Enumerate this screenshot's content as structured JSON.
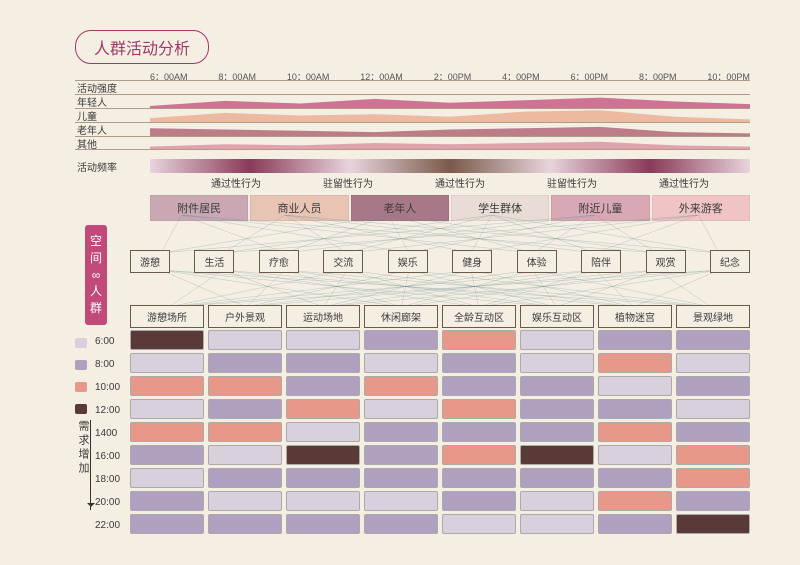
{
  "title": "人群活动分析",
  "time_ticks": [
    "6：00AM",
    "8：00AM",
    "10：00AM",
    "12：00AM",
    "2：00PM",
    "4：00PM",
    "6：00PM",
    "8：00PM",
    "10：00PM"
  ],
  "intensity": {
    "header": "活动强度",
    "rows": [
      {
        "label": "年轻人",
        "color": "#c24a7a",
        "peaks": [
          0.15,
          0.55,
          0.35,
          0.7,
          0.4,
          0.6,
          0.8,
          0.5,
          0.3
        ]
      },
      {
        "label": "儿童",
        "color": "#e8a88a",
        "peaks": [
          0.3,
          0.7,
          0.5,
          0.6,
          0.4,
          0.8,
          0.9,
          0.4,
          0.2
        ]
      },
      {
        "label": "老年人",
        "color": "#a8566a",
        "peaks": [
          0.6,
          0.5,
          0.4,
          0.3,
          0.5,
          0.6,
          0.7,
          0.3,
          0.2
        ]
      },
      {
        "label": "其他",
        "color": "#d88a9a",
        "peaks": [
          0.2,
          0.4,
          0.3,
          0.5,
          0.4,
          0.5,
          0.6,
          0.3,
          0.2
        ]
      }
    ],
    "freq_label": "活动频率"
  },
  "behaviors": [
    "通过性行为",
    "驻留性行为",
    "通过性行为",
    "驻留性行为",
    "通过性行为"
  ],
  "groups": [
    {
      "label": "附件居民",
      "color": "#c9a8b4"
    },
    {
      "label": "商业人员",
      "color": "#e8c4b4"
    },
    {
      "label": "老年人",
      "color": "#a87888"
    },
    {
      "label": "学生群体",
      "color": "#e8dcd4"
    },
    {
      "label": "附近儿童",
      "color": "#d8a8b4"
    },
    {
      "label": "外来游客",
      "color": "#f0c4c4"
    }
  ],
  "vert_label": "空间 ∞ 人群",
  "activities": [
    "游憩",
    "生活",
    "疗愈",
    "交流",
    "娱乐",
    "健身",
    "体验",
    "陪伴",
    "观赏",
    "纪念"
  ],
  "spaces": [
    "游憩场所",
    "户外景观",
    "运动场地",
    "休闲廊架",
    "全龄互动区",
    "娱乐互动区",
    "植物迷宫",
    "景观绿地"
  ],
  "hours": [
    "6:00",
    "8:00",
    "10:00",
    "12:00",
    "1400",
    "16:00",
    "18:00",
    "20:00",
    "22:00"
  ],
  "legend_colors": [
    "#d8d0dc",
    "#b0a0c0",
    "#e89888",
    "#5a3a36"
  ],
  "demand_label": "需求增加",
  "palette": {
    "c1": "#d8d0dc",
    "c2": "#b0a0c0",
    "c3": "#e89888",
    "c4": "#5a3a36"
  },
  "grid": [
    [
      "c4",
      "c1",
      "c1",
      "c2",
      "c3",
      "c1",
      "c2",
      "c2"
    ],
    [
      "c1",
      "c2",
      "c2",
      "c1",
      "c2",
      "c1",
      "c3",
      "c1"
    ],
    [
      "c3",
      "c3",
      "c2",
      "c3",
      "c2",
      "c2",
      "c1",
      "c2"
    ],
    [
      "c1",
      "c2",
      "c3",
      "c1",
      "c3",
      "c2",
      "c2",
      "c1"
    ],
    [
      "c3",
      "c3",
      "c1",
      "c2",
      "c2",
      "c2",
      "c3",
      "c2"
    ],
    [
      "c2",
      "c1",
      "c4",
      "c2",
      "c3",
      "c4",
      "c1",
      "c3"
    ],
    [
      "c1",
      "c2",
      "c2",
      "c2",
      "c2",
      "c2",
      "c2",
      "c3"
    ],
    [
      "c2",
      "c1",
      "c1",
      "c1",
      "c2",
      "c1",
      "c3",
      "c2"
    ],
    [
      "c2",
      "c2",
      "c2",
      "c2",
      "c1",
      "c1",
      "c2",
      "c4"
    ]
  ],
  "link_color": "#5a8a8a"
}
